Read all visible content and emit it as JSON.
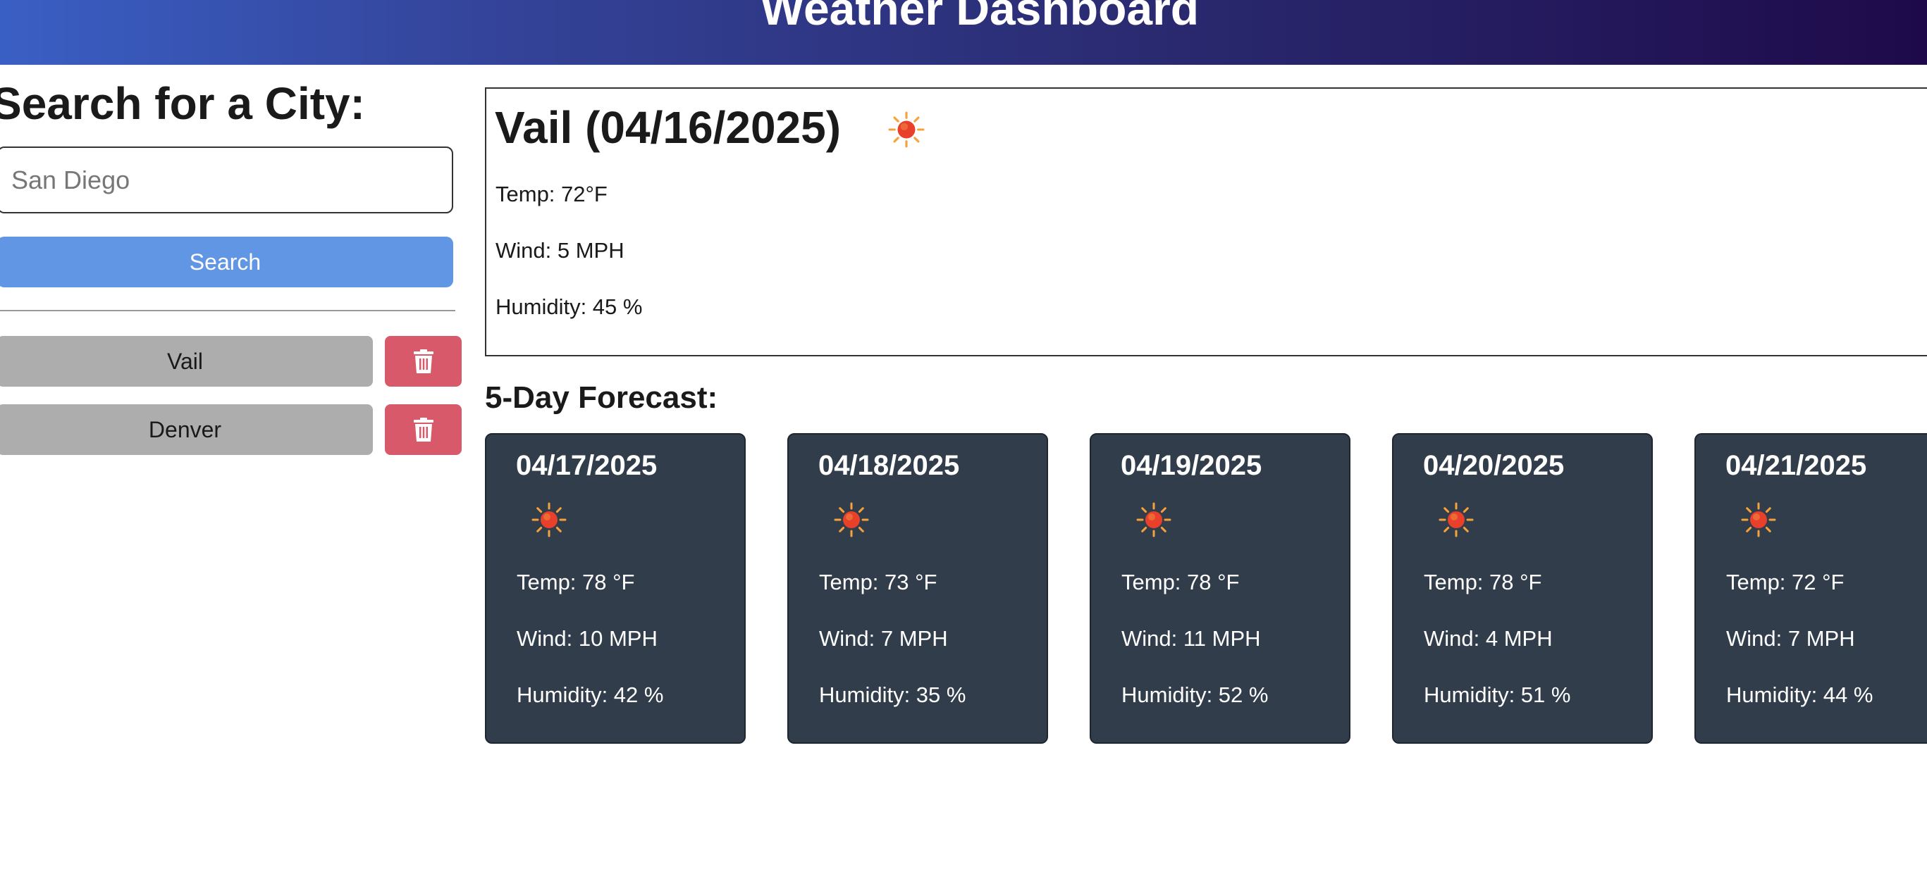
{
  "header": {
    "title": "Weather Dashboard"
  },
  "sidebar": {
    "title": "Search for a City:",
    "search": {
      "value": "San Diego",
      "placeholder": "San Diego",
      "button_label": "Search"
    },
    "history": [
      {
        "label": "Vail",
        "delete_icon": "trash-icon"
      },
      {
        "label": "Denver",
        "delete_icon": "trash-icon"
      }
    ]
  },
  "current": {
    "title": "Vail (04/16/2025)",
    "icon": "sun-icon",
    "temp": "Temp: 72°F",
    "wind": "Wind: 5 MPH",
    "humidity": "Humidity: 45 %"
  },
  "forecast": {
    "heading": "5-Day Forecast:",
    "days": [
      {
        "date": "04/17/2025",
        "icon": "sun-icon",
        "temp": "Temp: 78 °F",
        "wind": "Wind: 10 MPH",
        "humidity": "Humidity: 42 %"
      },
      {
        "date": "04/18/2025",
        "icon": "sun-icon",
        "temp": "Temp: 73 °F",
        "wind": "Wind: 7 MPH",
        "humidity": "Humidity: 35 %"
      },
      {
        "date": "04/19/2025",
        "icon": "sun-icon",
        "temp": "Temp: 78 °F",
        "wind": "Wind: 11 MPH",
        "humidity": "Humidity: 52 %"
      },
      {
        "date": "04/20/2025",
        "icon": "sun-icon",
        "temp": "Temp: 78 °F",
        "wind": "Wind: 4 MPH",
        "humidity": "Humidity: 51 %"
      },
      {
        "date": "04/21/2025",
        "icon": "sun-icon",
        "temp": "Temp: 72 °F",
        "wind": "Wind: 7 MPH",
        "humidity": "Humidity: 44 %"
      }
    ]
  },
  "colors": {
    "header_start": "#3a5fc4",
    "header_end": "#1e0a4a",
    "search_button": "#6196e4",
    "history_button": "#adadad",
    "delete_button": "#d85a6a",
    "forecast_card": "#323d4b"
  }
}
